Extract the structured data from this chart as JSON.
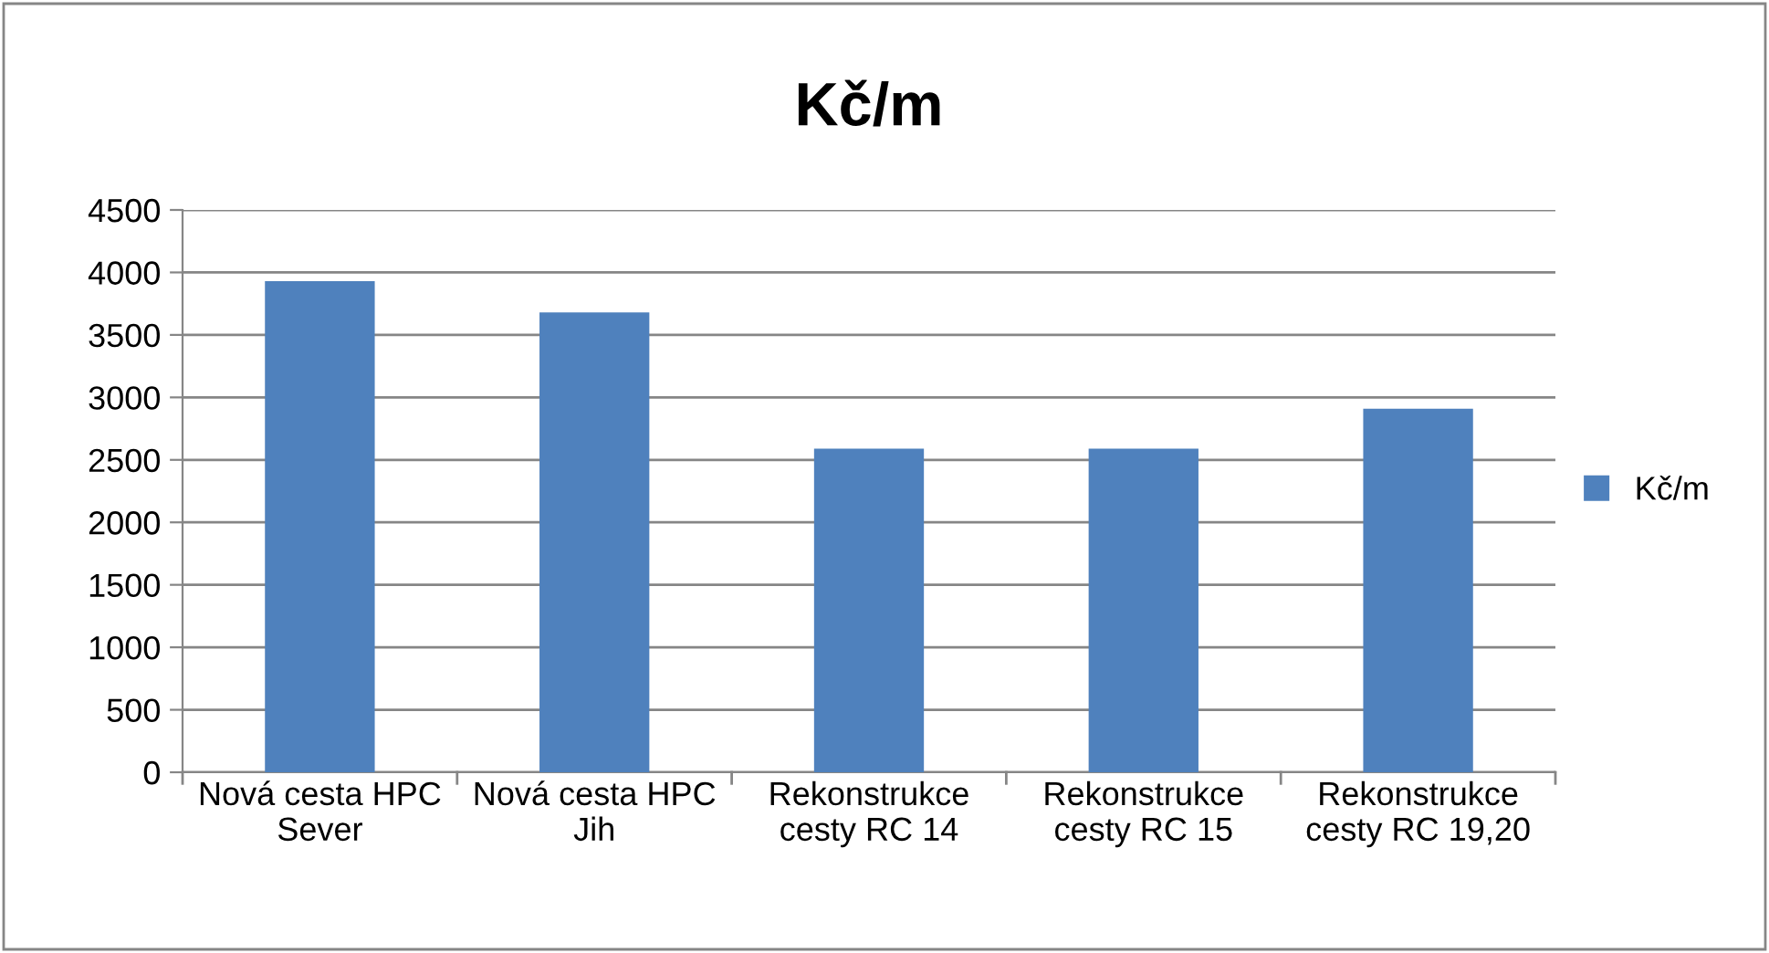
{
  "chart_data": {
    "type": "bar",
    "title": "Kč/m",
    "categories": [
      "Nová cesta HPC\nSever",
      "Nová cesta HPC\nJih",
      "Rekonstrukce\ncesty RC 14",
      "Rekonstrukce\ncesty RC 15",
      "Rekonstrukce\ncesty RC 19,20"
    ],
    "series": [
      {
        "name": "Kč/m",
        "color": "#4f81bd",
        "values": [
          3930,
          3680,
          2590,
          2590,
          2910
        ]
      }
    ],
    "ylim": [
      0,
      4500
    ],
    "yticks": [
      0,
      500,
      1000,
      1500,
      2000,
      2500,
      3000,
      3500,
      4000,
      4500
    ],
    "grid": "y",
    "legend": "right"
  }
}
